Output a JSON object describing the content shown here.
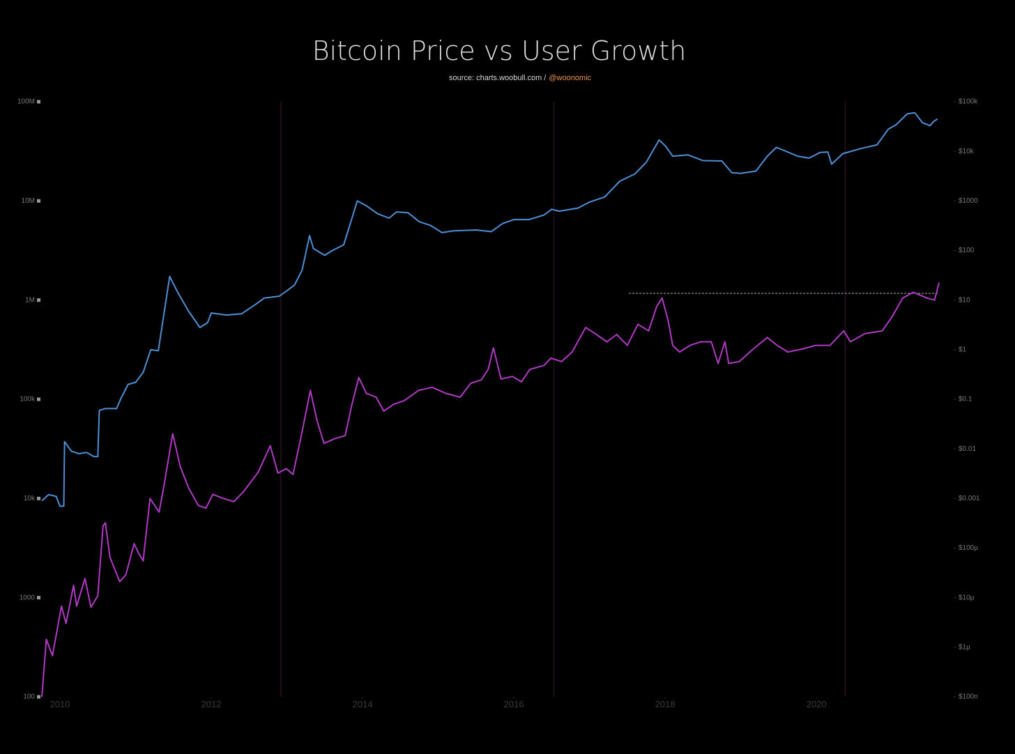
{
  "chart_data": {
    "type": "line",
    "title": "Bitcoin Price vs User Growth",
    "subtitle": "source: charts.woobull.com /",
    "subtitle_handle": "@woonomic",
    "log": true,
    "xlim": [
      2009.76,
      2021.62
    ],
    "xticks": [
      2010,
      2012,
      2014,
      2016,
      2018,
      2020
    ],
    "ylim": [
      100,
      100000000
    ],
    "yticks": [
      {
        "value": 100000000,
        "label": "100M"
      },
      {
        "value": 10000000,
        "label": "10M"
      },
      {
        "value": 1000000,
        "label": "1M"
      },
      {
        "value": 100000,
        "label": "100k"
      },
      {
        "value": 10000,
        "label": "10k"
      },
      1000,
      100
    ],
    "y2lim": [
      1e-07,
      100000
    ],
    "y2ticks": [
      {
        "value": 100000,
        "label": "$100k"
      },
      {
        "value": 10000,
        "label": "$10k"
      },
      {
        "value": 1000,
        "label": "$1000"
      },
      {
        "value": 100,
        "label": "$100"
      },
      {
        "value": 10,
        "label": "$10"
      },
      {
        "value": 1,
        "label": "$1"
      },
      {
        "value": 0.1,
        "label": "$0.1"
      },
      {
        "value": 0.01,
        "label": "$0.01"
      },
      {
        "value": 0.001,
        "label": "$0.001"
      },
      {
        "value": 0.0001,
        "label": "$100µ"
      },
      {
        "value": 1e-05,
        "label": "$10µ"
      },
      {
        "value": 1e-06,
        "label": "$1µ"
      },
      {
        "value": 1e-07,
        "label": "$100n"
      }
    ],
    "vertical_markers": [
      2012.92,
      2016.53,
      2020.38
    ],
    "reference_line": {
      "value": 1170000,
      "x": [
        2017.52,
        2021.62
      ],
      "color": "#cccccc"
    },
    "series": [
      {
        "color": "#b13ac4",
        "axis": "y",
        "x": [
          2009.76,
          2009.82,
          2009.9,
          2010.02,
          2010.08,
          2010.18,
          2010.22,
          2010.33,
          2010.41,
          2010.5,
          2010.57,
          2010.6,
          2010.66,
          2010.79,
          2010.87,
          2010.98,
          2011.04,
          2011.1,
          2011.19,
          2011.31,
          2011.37,
          2011.49,
          2011.59,
          2011.7,
          2011.83,
          2011.93,
          2012.02,
          2012.16,
          2012.3,
          2012.43,
          2012.62,
          2012.78,
          2012.88,
          2012.99,
          2013.08,
          2013.19,
          2013.31,
          2013.4,
          2013.49,
          2013.63,
          2013.77,
          2013.86,
          2013.95,
          2014.05,
          2014.18,
          2014.28,
          2014.41,
          2014.55,
          2014.74,
          2014.92,
          2015.1,
          2015.29,
          2015.43,
          2015.57,
          2015.66,
          2015.73,
          2015.83,
          2015.98,
          2016.1,
          2016.21,
          2016.4,
          2016.49,
          2016.63,
          2016.77,
          2016.95,
          2017.09,
          2017.23,
          2017.36,
          2017.5,
          2017.64,
          2017.78,
          2017.89,
          2017.96,
          2018.04,
          2018.1,
          2018.19,
          2018.33,
          2018.47,
          2018.61,
          2018.7,
          2018.79,
          2018.84,
          2018.98,
          2019.16,
          2019.35,
          2019.48,
          2019.62,
          2019.8,
          2019.99,
          2020.18,
          2020.36,
          2020.45,
          2020.64,
          2020.87,
          2021.0,
          2021.14,
          2021.28,
          2021.46,
          2021.56,
          2021.62
        ],
        "values": [
          100,
          380,
          260,
          820,
          550,
          1330,
          820,
          1560,
          800,
          1050,
          5300,
          5700,
          2550,
          1450,
          1700,
          3500,
          2800,
          2350,
          10000,
          7300,
          12800,
          45000,
          21000,
          12800,
          8500,
          8000,
          11000,
          10000,
          9300,
          11800,
          18400,
          34000,
          18000,
          20000,
          17500,
          43000,
          123000,
          60000,
          36000,
          40000,
          43000,
          89000,
          166000,
          115000,
          105000,
          76000,
          89000,
          97000,
          123000,
          132000,
          115000,
          105000,
          145000,
          157000,
          200000,
          330000,
          160000,
          170000,
          150000,
          200000,
          220000,
          260000,
          240000,
          300000,
          530000,
          450000,
          380000,
          450000,
          350000,
          570000,
          490000,
          870000,
          1050000,
          620000,
          350000,
          300000,
          350000,
          380000,
          380000,
          230000,
          380000,
          230000,
          240000,
          320000,
          420000,
          350000,
          300000,
          320000,
          350000,
          350000,
          490000,
          380000,
          460000,
          490000,
          680000,
          1050000,
          1200000,
          1050000,
          1000000,
          1500000
        ]
      },
      {
        "color": "#4f8fd6",
        "axis": "y2",
        "x": [
          2009.76,
          2009.85,
          2009.95,
          2010.0,
          2010.05,
          2010.06,
          2010.15,
          2010.25,
          2010.35,
          2010.45,
          2010.5,
          2010.52,
          2010.6,
          2010.75,
          2010.8,
          2010.9,
          2011.0,
          2011.1,
          2011.2,
          2011.3,
          2011.35,
          2011.45,
          2011.55,
          2011.7,
          2011.85,
          2011.95,
          2012.0,
          2012.2,
          2012.4,
          2012.6,
          2012.7,
          2012.9,
          2013.1,
          2013.2,
          2013.3,
          2013.35,
          2013.5,
          2013.6,
          2013.75,
          2013.85,
          2013.93,
          2014.05,
          2014.2,
          2014.35,
          2014.45,
          2014.6,
          2014.75,
          2014.9,
          2015.05,
          2015.2,
          2015.5,
          2015.7,
          2015.85,
          2016.0,
          2016.2,
          2016.4,
          2016.5,
          2016.6,
          2016.85,
          2017.0,
          2017.2,
          2017.4,
          2017.6,
          2017.75,
          2017.92,
          2018.0,
          2018.1,
          2018.3,
          2018.5,
          2018.75,
          2018.88,
          2019.0,
          2019.2,
          2019.35,
          2019.47,
          2019.6,
          2019.75,
          2019.9,
          2020.05,
          2020.15,
          2020.2,
          2020.35,
          2020.6,
          2020.8,
          2020.95,
          2021.05,
          2021.2,
          2021.3,
          2021.4,
          2021.5,
          2021.55,
          2021.6
        ],
        "values": [
          0.0009,
          0.0012,
          0.0011,
          0.0007,
          0.0007,
          0.014,
          0.009,
          0.008,
          0.0085,
          0.007,
          0.007,
          0.06,
          0.065,
          0.065,
          0.1,
          0.2,
          0.22,
          0.35,
          1,
          0.95,
          3,
          30,
          15,
          6,
          2.8,
          3.5,
          5.5,
          5,
          5.3,
          8.5,
          11,
          12,
          20,
          40,
          200,
          110,
          80,
          100,
          130,
          400,
          1000,
          800,
          550,
          450,
          600,
          580,
          380,
          320,
          230,
          250,
          260,
          240,
          350,
          420,
          420,
          520,
          680,
          620,
          720,
          950,
          1200,
          2500,
          3500,
          6000,
          17000,
          13000,
          8000,
          8500,
          6500,
          6400,
          3700,
          3600,
          4000,
          8000,
          12000,
          10000,
          8000,
          7300,
          9500,
          9700,
          5500,
          9000,
          11500,
          13500,
          28000,
          34000,
          57000,
          60000,
          38000,
          33000,
          40000,
          45000
        ]
      }
    ]
  }
}
